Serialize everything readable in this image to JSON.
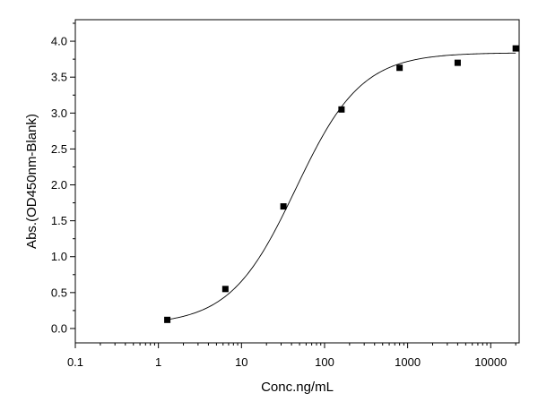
{
  "chart_data": {
    "type": "scatter",
    "title": "",
    "xlabel": "Conc.ng/mL",
    "ylabel": "Abs.(OD450nm-Blank)",
    "x_scale": "log",
    "xlim": [
      0.1,
      22000
    ],
    "ylim": [
      -0.2,
      4.3
    ],
    "x_ticks": [
      0.1,
      1,
      10,
      100,
      1000,
      10000
    ],
    "x_tick_labels": [
      "0.1",
      "1",
      "10",
      "100",
      "1000",
      "10000"
    ],
    "y_ticks": [
      0.0,
      0.5,
      1.0,
      1.5,
      2.0,
      2.5,
      3.0,
      3.5,
      4.0
    ],
    "y_tick_labels": [
      "0.0",
      "0.5",
      "1.0",
      "1.5",
      "2.0",
      "2.5",
      "3.0",
      "3.5",
      "4.0"
    ],
    "grid": false,
    "legend": "none",
    "series": [
      {
        "x": [
          1.28,
          6.4,
          32,
          160,
          800,
          4000,
          20000
        ],
        "y": [
          0.12,
          0.55,
          1.7,
          3.05,
          3.63,
          3.7,
          3.9
        ],
        "marker": "square",
        "color": "#000000"
      }
    ],
    "fit_curve": {
      "model": "4PL",
      "bottom": 0.05,
      "top": 3.84,
      "ec50": 45,
      "hill": 1.1,
      "color": "#000000"
    }
  }
}
